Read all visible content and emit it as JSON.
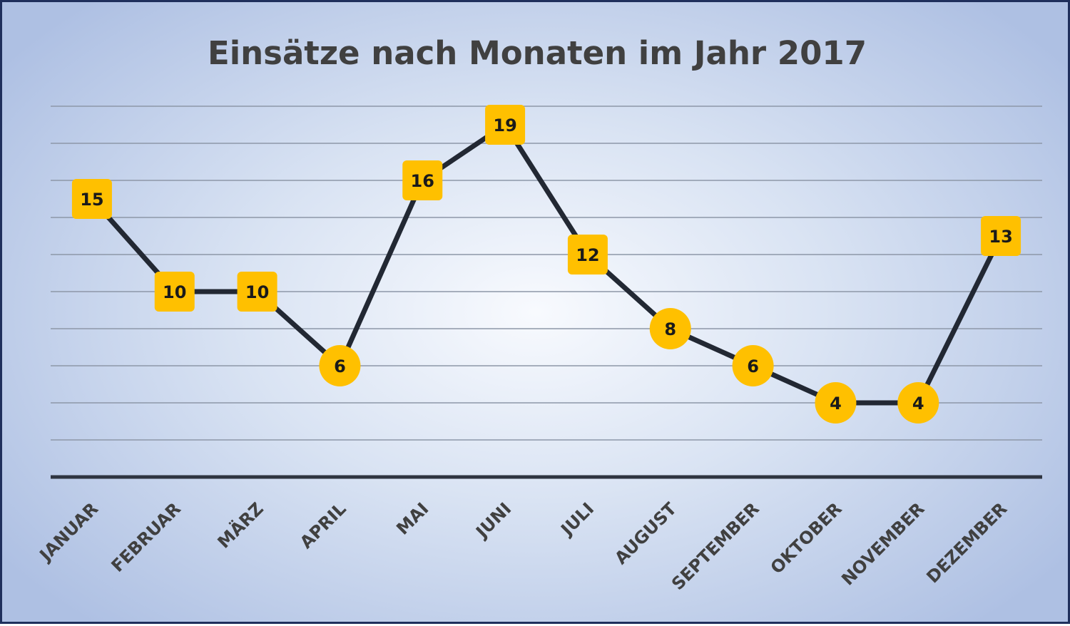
{
  "chart_data": {
    "type": "line",
    "title": "Einsätze nach Monaten im Jahr 2017",
    "categories": [
      "JANUAR",
      "FEBRUAR",
      "MÄRZ",
      "APRIL",
      "MAI",
      "JUNI",
      "JULI",
      "AUGUST",
      "SEPTEMBER",
      "OKTOBER",
      "NOVEMBER",
      "DEZEMBER"
    ],
    "series": [
      {
        "values": [
          15,
          10,
          10,
          6,
          16,
          19,
          12,
          8,
          6,
          4,
          4,
          13
        ],
        "markers": [
          "square",
          "square",
          "square",
          "circle",
          "square",
          "square",
          "square",
          "circle",
          "circle",
          "circle",
          "circle",
          "square"
        ]
      }
    ],
    "ylim": [
      0,
      20
    ],
    "y_tick_step": 2,
    "grid": true,
    "legend": "none",
    "colors": {
      "line": "#222833",
      "marker": "#ffc000",
      "grid": "#8d97a8",
      "axis": "#2e3440",
      "title": "#404040"
    }
  }
}
